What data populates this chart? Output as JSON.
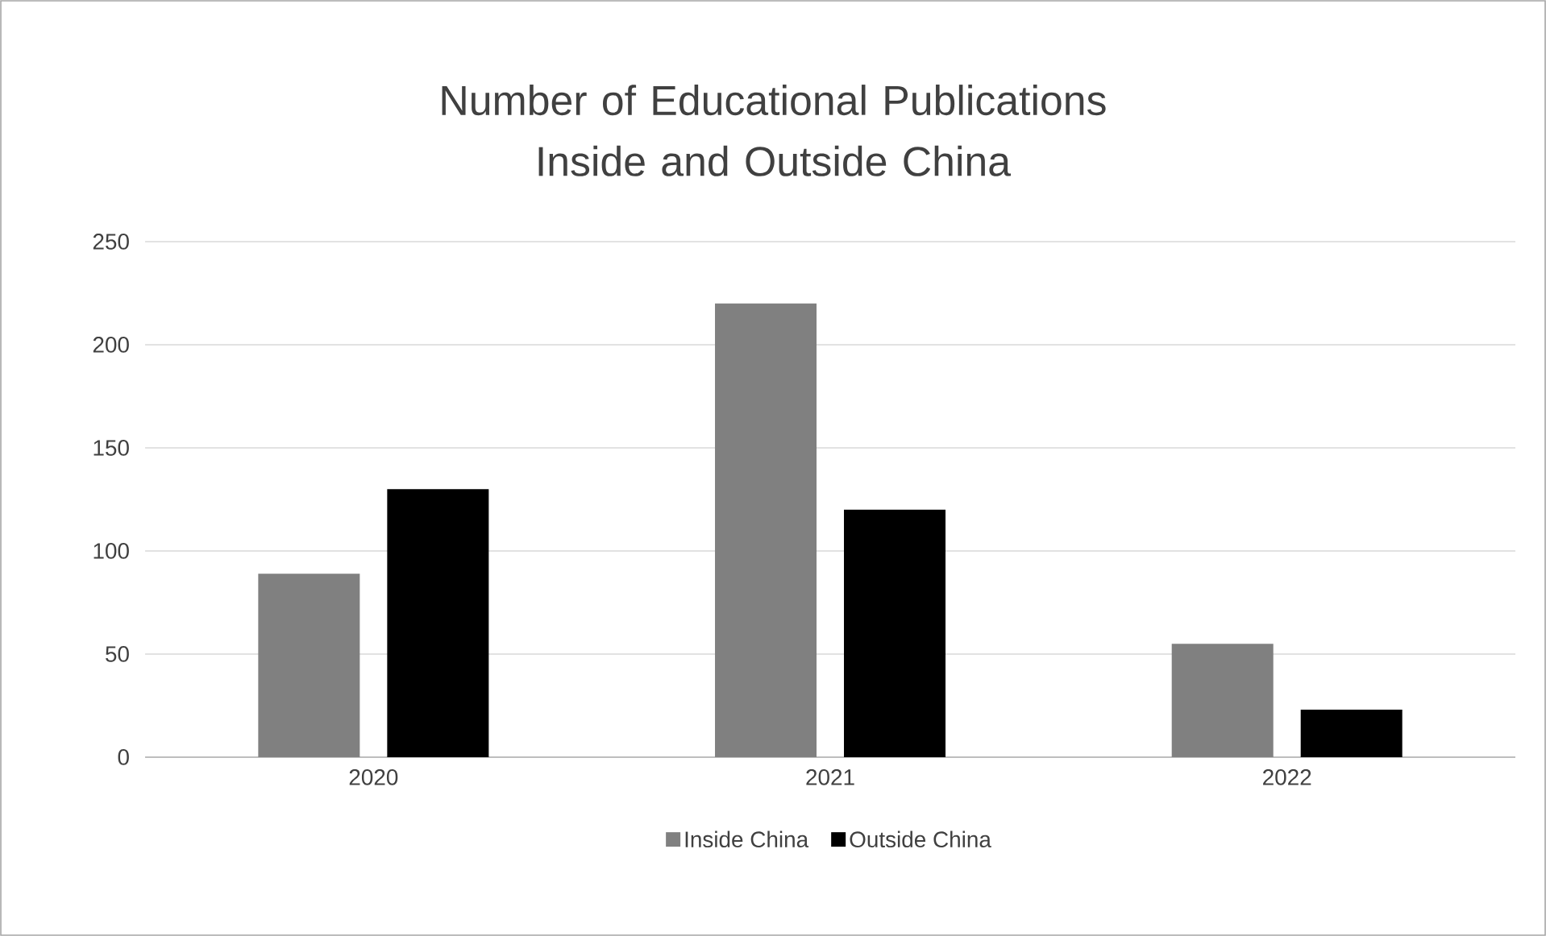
{
  "chart_data": {
    "type": "bar",
    "title": "Number of Educational Publications Inside and Outside China",
    "categories": [
      "2020",
      "2021",
      "2022"
    ],
    "series": [
      {
        "name": "Inside China",
        "color": "#808080",
        "values": [
          89,
          220,
          55
        ]
      },
      {
        "name": "Outside China",
        "color": "#000000",
        "values": [
          130,
          120,
          23
        ]
      }
    ],
    "ylim": [
      0,
      250
    ],
    "yticks": [
      0,
      50,
      100,
      150,
      200,
      250
    ],
    "grid": "y",
    "legend": "bottom"
  }
}
